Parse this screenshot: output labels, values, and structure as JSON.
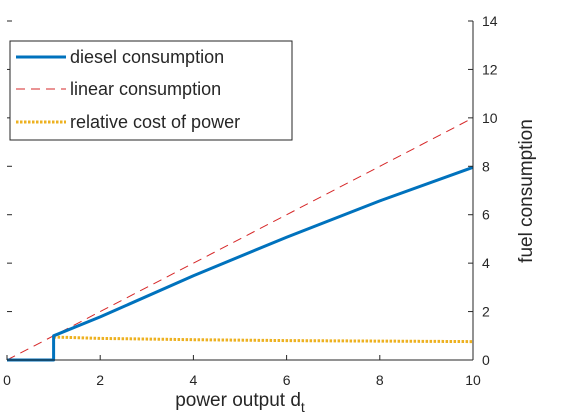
{
  "chart_data": {
    "type": "line",
    "title": "",
    "xlabel": "power output d",
    "xlabel_subscript": "t",
    "ylabel": "fuel consumption",
    "xlim": [
      0,
      10
    ],
    "ylim": [
      0,
      14
    ],
    "y_axis_side": "right",
    "x_ticks": [
      0,
      2,
      4,
      6,
      8,
      10
    ],
    "y_ticks": [
      0,
      2,
      4,
      6,
      8,
      10,
      12,
      14
    ],
    "grid": false,
    "legend_position": "top-left",
    "series": [
      {
        "name": "diesel consumption",
        "style": "solid",
        "color": "#0072BD",
        "x": [
          0,
          1,
          1,
          2,
          4,
          6,
          8,
          10
        ],
        "y": [
          0,
          0,
          1.0,
          1.78,
          3.48,
          5.07,
          6.57,
          7.96
        ]
      },
      {
        "name": "linear consumption",
        "style": "dashed",
        "color": "#D62728",
        "x": [
          0,
          10
        ],
        "y": [
          0,
          10
        ]
      },
      {
        "name": "relative cost of power",
        "style": "dotted",
        "color": "#EDB120",
        "x": [
          1,
          2,
          4,
          6,
          8,
          10
        ],
        "y": [
          0.95,
          0.89,
          0.84,
          0.8,
          0.78,
          0.76
        ]
      }
    ]
  }
}
